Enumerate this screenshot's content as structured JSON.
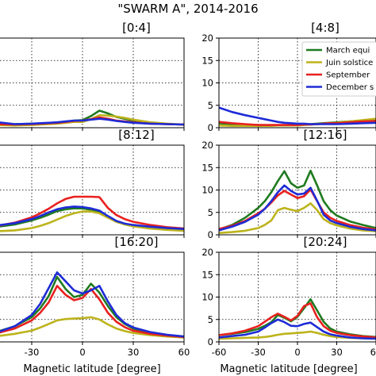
{
  "chart_data": {
    "type": "line",
    "suptitle": "\"SWARM A\", 2014-2016",
    "xlabel": "Magnetic latitude [degree]",
    "xlim": [
      -60,
      60
    ],
    "ylim": [
      0,
      20
    ],
    "x_ticks": [
      -60,
      -30,
      0,
      30,
      60
    ],
    "y_ticks": [
      0,
      5,
      10,
      15,
      20
    ],
    "grid": "dotted",
    "legend": {
      "placement": "top-right of panel [4:8]",
      "entries": [
        {
          "label": "March equi",
          "color": "#1f7a1f"
        },
        {
          "label": "Juin solstice",
          "color": "#bdb31c"
        },
        {
          "label": "September",
          "color": "#e8201f"
        },
        {
          "label": "December s",
          "color": "#1e2bd6"
        }
      ]
    },
    "x": [
      -60,
      -50,
      -40,
      -30,
      -25,
      -20,
      -15,
      -10,
      -5,
      0,
      5,
      10,
      15,
      20,
      25,
      30,
      40,
      50,
      60
    ],
    "panels": [
      {
        "title": "[0:4]",
        "series": [
          {
            "color": "#1f7a1f",
            "values": [
              1.5,
              0.9,
              0.8,
              0.9,
              0.9,
              0.9,
              1.0,
              1.3,
              1.6,
              1.7,
              2.6,
              3.8,
              3.2,
              2.4,
              2.0,
              1.6,
              1.0,
              0.8,
              0.7
            ]
          },
          {
            "color": "#bdb31c",
            "values": [
              0.8,
              0.6,
              0.5,
              0.6,
              0.7,
              0.8,
              0.9,
              1.1,
              1.3,
              1.3,
              1.9,
              2.8,
              2.7,
              2.5,
              2.2,
              1.8,
              1.2,
              0.9,
              0.7
            ]
          },
          {
            "color": "#e8201f",
            "values": [
              1.7,
              0.8,
              0.7,
              0.8,
              0.9,
              1.0,
              1.1,
              1.3,
              1.5,
              1.6,
              1.9,
              2.3,
              2.0,
              1.6,
              1.4,
              1.2,
              0.9,
              0.8,
              0.7
            ]
          },
          {
            "color": "#1e2bd6",
            "values": [
              2.5,
              1.2,
              0.8,
              0.9,
              1.0,
              1.1,
              1.2,
              1.4,
              1.6,
              1.6,
              1.8,
              2.0,
              1.8,
              1.5,
              1.3,
              1.1,
              0.9,
              0.8,
              0.7
            ]
          }
        ]
      },
      {
        "title": "[4:8]",
        "series": [
          {
            "color": "#1f7a1f",
            "values": [
              1.0,
              0.8,
              0.6,
              0.5,
              0.5,
              0.5,
              0.5,
              0.5,
              0.6,
              0.6,
              0.7,
              0.8,
              0.9,
              1.0,
              1.1,
              1.2,
              1.4,
              1.6,
              1.8
            ]
          },
          {
            "color": "#bdb31c",
            "values": [
              0.5,
              0.4,
              0.4,
              0.4,
              0.4,
              0.4,
              0.5,
              0.5,
              0.5,
              0.5,
              0.6,
              0.7,
              0.8,
              0.9,
              1.0,
              1.1,
              1.4,
              1.7,
              2.0
            ]
          },
          {
            "color": "#e8201f",
            "values": [
              1.3,
              1.0,
              0.8,
              0.6,
              0.6,
              0.6,
              0.6,
              0.6,
              0.6,
              0.6,
              0.7,
              0.7,
              0.8,
              0.9,
              1.0,
              1.0,
              1.2,
              1.4,
              1.5
            ]
          },
          {
            "color": "#1e2bd6",
            "values": [
              4.5,
              3.5,
              2.8,
              2.2,
              1.9,
              1.6,
              1.3,
              1.1,
              1.0,
              0.9,
              0.9,
              0.8,
              0.8,
              0.8,
              0.8,
              0.8,
              0.9,
              1.0,
              1.1
            ]
          }
        ]
      },
      {
        "title": "[8:12]",
        "series": [
          {
            "color": "#1f7a1f",
            "values": [
              1.5,
              1.8,
              2.3,
              3.2,
              3.8,
              4.5,
              5.3,
              5.7,
              5.9,
              5.9,
              5.6,
              5.0,
              3.9,
              2.9,
              2.4,
              2.1,
              1.7,
              1.4,
              1.2
            ]
          },
          {
            "color": "#bdb31c",
            "values": [
              0.6,
              0.8,
              1.0,
              1.5,
              2.0,
              2.6,
              3.4,
              4.2,
              4.8,
              5.2,
              5.2,
              4.8,
              3.8,
              2.9,
              2.3,
              1.9,
              1.4,
              1.1,
              0.9
            ]
          },
          {
            "color": "#e8201f",
            "values": [
              1.6,
              2.0,
              2.7,
              3.9,
              4.8,
              5.8,
              7.0,
              8.0,
              8.5,
              8.5,
              8.5,
              8.4,
              6.0,
              4.4,
              3.5,
              2.9,
              2.2,
              1.7,
              1.4
            ]
          },
          {
            "color": "#1e2bd6",
            "values": [
              1.8,
              2.1,
              2.6,
              3.5,
              4.2,
              5.0,
              5.7,
              6.1,
              6.3,
              6.2,
              5.9,
              5.4,
              4.2,
              3.1,
              2.5,
              2.2,
              1.8,
              1.5,
              1.3
            ]
          }
        ]
      },
      {
        "title": "[12:16]",
        "series": [
          {
            "color": "#1f7a1f",
            "values": [
              1.2,
              2.2,
              3.8,
              6.0,
              7.5,
              9.5,
              12.0,
              14.2,
              11.5,
              10.5,
              11.0,
              14.3,
              11.0,
              7.5,
              5.5,
              4.3,
              3.0,
              2.2,
              1.5
            ]
          },
          {
            "color": "#bdb31c",
            "values": [
              0.4,
              0.6,
              0.9,
              1.5,
              2.2,
              3.2,
              5.5,
              6.0,
              5.6,
              5.3,
              6.0,
              7.0,
              5.5,
              3.5,
              2.6,
              2.1,
              1.4,
              1.0,
              0.8
            ]
          },
          {
            "color": "#e8201f",
            "values": [
              1.3,
              2.0,
              3.1,
              4.8,
              5.8,
              7.2,
              8.8,
              9.8,
              9.0,
              8.2,
              8.6,
              10.1,
              7.5,
              5.0,
              3.8,
              3.1,
              2.2,
              1.6,
              1.2
            ]
          },
          {
            "color": "#1e2bd6",
            "values": [
              1.0,
              1.8,
              2.9,
              4.5,
              5.8,
              7.5,
              9.5,
              11.0,
              9.8,
              9.0,
              9.2,
              10.5,
              7.6,
              4.5,
              3.2,
              2.6,
              1.8,
              1.3,
              1.0
            ]
          }
        ]
      },
      {
        "title": "[16:20]",
        "series": [
          {
            "color": "#1f7a1f",
            "values": [
              1.5,
              2.3,
              3.5,
              5.5,
              7.5,
              10.2,
              14.5,
              11.8,
              10.0,
              10.5,
              13.0,
              11.0,
              8.0,
              5.5,
              4.0,
              3.0,
              2.0,
              1.5,
              1.2
            ]
          },
          {
            "color": "#bdb31c",
            "values": [
              1.0,
              1.3,
              1.8,
              2.5,
              3.2,
              4.0,
              4.8,
              5.1,
              5.2,
              5.3,
              5.5,
              5.0,
              3.9,
              3.0,
              2.4,
              2.0,
              1.5,
              1.2,
              1.0
            ]
          },
          {
            "color": "#e8201f",
            "values": [
              1.3,
              2.0,
              3.0,
              4.8,
              6.5,
              8.8,
              12.5,
              10.5,
              9.3,
              9.8,
              11.8,
              9.5,
              6.5,
              4.5,
              3.3,
              2.5,
              1.8,
              1.4,
              1.1
            ]
          },
          {
            "color": "#1e2bd6",
            "values": [
              1.4,
              2.2,
              3.5,
              6.0,
              8.5,
              12.0,
              15.5,
              13.5,
              11.5,
              10.8,
              11.5,
              12.5,
              9.0,
              6.0,
              4.2,
              3.2,
              2.2,
              1.6,
              1.2
            ]
          }
        ]
      },
      {
        "title": "[20:24]",
        "series": [
          {
            "color": "#1f7a1f",
            "values": [
              1.5,
              1.8,
              2.2,
              2.9,
              3.6,
              4.4,
              6.0,
              5.4,
              4.6,
              5.6,
              7.5,
              9.5,
              7.0,
              4.5,
              3.0,
              2.3,
              1.7,
              1.3,
              1.1
            ]
          },
          {
            "color": "#bdb31c",
            "values": [
              0.7,
              0.8,
              0.9,
              1.0,
              1.1,
              1.3,
              1.6,
              1.8,
              1.9,
              2.0,
              2.1,
              2.3,
              2.0,
              1.6,
              1.3,
              1.1,
              0.9,
              0.8,
              0.7
            ]
          },
          {
            "color": "#e8201f",
            "values": [
              1.5,
              1.9,
              2.5,
              3.5,
              4.5,
              5.5,
              6.3,
              5.6,
              4.8,
              5.8,
              8.0,
              8.6,
              5.5,
              3.5,
              2.5,
              2.0,
              1.5,
              1.2,
              1.0
            ]
          },
          {
            "color": "#1e2bd6",
            "values": [
              1.0,
              1.3,
              1.6,
              2.3,
              3.2,
              4.2,
              5.0,
              4.4,
              3.6,
              3.5,
              4.0,
              4.3,
              3.3,
              2.3,
              1.7,
              1.4,
              1.0,
              0.8,
              0.7
            ]
          }
        ]
      }
    ]
  }
}
